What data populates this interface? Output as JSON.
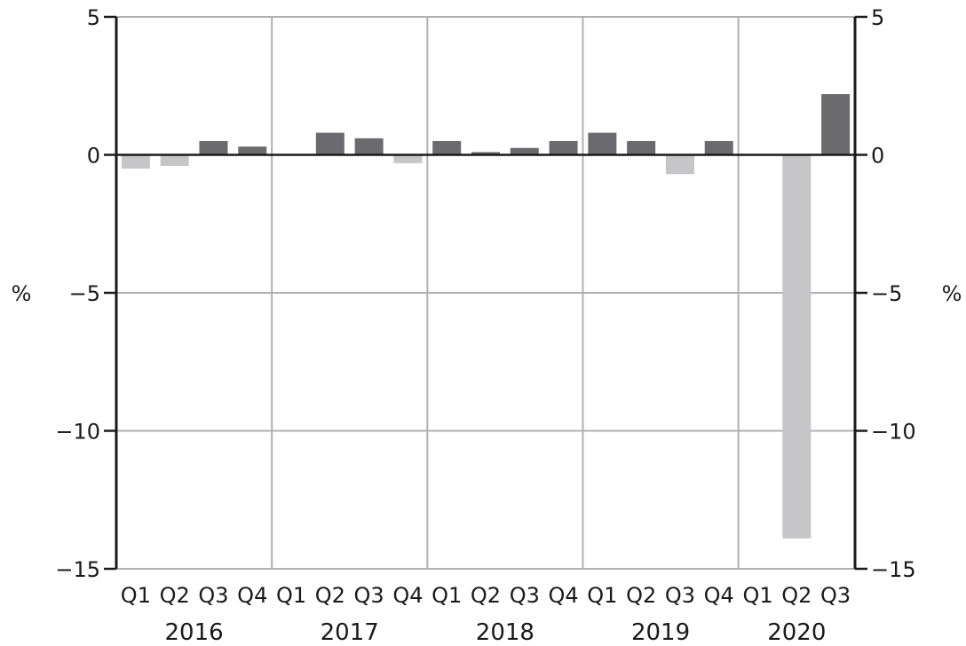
{
  "chart_data": {
    "type": "bar",
    "categories": [
      "Q1",
      "Q2",
      "Q3",
      "Q4",
      "Q1",
      "Q2",
      "Q3",
      "Q4",
      "Q1",
      "Q2",
      "Q3",
      "Q4",
      "Q1",
      "Q2",
      "Q3",
      "Q4",
      "Q1",
      "Q2",
      "Q3"
    ],
    "years": [
      "2016",
      "2017",
      "2018",
      "2019",
      "2020"
    ],
    "values": [
      -0.5,
      -0.4,
      0.5,
      0.3,
      null,
      0.8,
      0.6,
      -0.3,
      0.5,
      0.1,
      0.25,
      0.5,
      0.8,
      0.5,
      -0.7,
      0.5,
      null,
      -13.9,
      2.2
    ],
    "ylim": [
      -15,
      5
    ],
    "yticks": [
      5,
      0,
      -5,
      -10,
      -15
    ],
    "ytick_labels": [
      "5",
      "0",
      "−5",
      "−10",
      "−15"
    ],
    "ylabel_left": "%",
    "ylabel_right": "%",
    "title": "",
    "grid": true,
    "colors": {
      "positive": "#6b6b6e",
      "negative": "#c6c6c8",
      "grid": "#b0b0b0",
      "axis": "#1a1a1a"
    }
  }
}
